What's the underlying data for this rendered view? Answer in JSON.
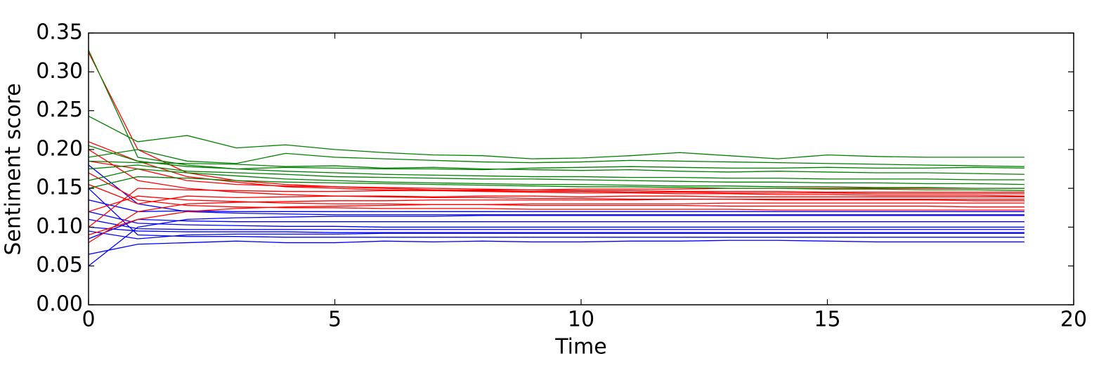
{
  "chart_data": {
    "type": "line",
    "xlabel": "Time",
    "ylabel": "Sentiment score",
    "xlim": [
      0,
      20
    ],
    "ylim": [
      0,
      0.35
    ],
    "xticks": [
      0,
      5,
      10,
      15,
      20
    ],
    "yticks": [
      {
        "value": 0,
        "label": "0.00"
      },
      0.05,
      {
        "value": 0.1,
        "label": "0.10"
      },
      0.15,
      {
        "value": 0.2,
        "label": "0.20"
      },
      0.25,
      {
        "value": 0.3,
        "label": "0.30"
      },
      0.35
    ],
    "x": [
      0,
      1,
      2,
      3,
      4,
      5,
      6,
      7,
      8,
      9,
      10,
      11,
      12,
      13,
      14,
      15,
      16,
      17,
      18,
      19
    ],
    "series": [
      {
        "color": "#0000ff",
        "values": [
          0.05,
          0.1,
          0.11,
          0.112,
          0.113,
          0.114,
          0.114,
          0.114,
          0.115,
          0.115,
          0.115,
          0.115,
          0.115,
          0.115,
          0.115,
          0.115,
          0.115,
          0.115,
          0.115,
          0.115
        ]
      },
      {
        "color": "#0000ff",
        "values": [
          0.065,
          0.078,
          0.08,
          0.082,
          0.08,
          0.08,
          0.082,
          0.081,
          0.082,
          0.081,
          0.081,
          0.082,
          0.082,
          0.083,
          0.083,
          0.082,
          0.081,
          0.081,
          0.081,
          0.081
        ]
      },
      {
        "color": "#0000ff",
        "values": [
          0.15,
          0.09,
          0.088,
          0.088,
          0.087,
          0.087,
          0.087,
          0.087,
          0.087,
          0.087,
          0.087,
          0.087,
          0.087,
          0.087,
          0.087,
          0.087,
          0.087,
          0.087,
          0.087,
          0.087
        ]
      },
      {
        "color": "#0000ff",
        "values": [
          0.18,
          0.13,
          0.12,
          0.118,
          0.117,
          0.116,
          0.116,
          0.116,
          0.116,
          0.116,
          0.116,
          0.116,
          0.116,
          0.116,
          0.116,
          0.116,
          0.116,
          0.116,
          0.116,
          0.116
        ]
      },
      {
        "color": "#0000ff",
        "values": [
          0.1,
          0.095,
          0.094,
          0.094,
          0.094,
          0.093,
          0.093,
          0.093,
          0.093,
          0.093,
          0.093,
          0.093,
          0.093,
          0.093,
          0.093,
          0.093,
          0.093,
          0.093,
          0.093,
          0.093
        ]
      },
      {
        "color": "#0000ff",
        "values": [
          0.12,
          0.105,
          0.103,
          0.102,
          0.101,
          0.101,
          0.1,
          0.1,
          0.1,
          0.1,
          0.1,
          0.1,
          0.1,
          0.1,
          0.1,
          0.1,
          0.1,
          0.1,
          0.1,
          0.1
        ]
      },
      {
        "color": "#0000ff",
        "values": [
          0.085,
          0.11,
          0.108,
          0.107,
          0.107,
          0.107,
          0.107,
          0.107,
          0.107,
          0.107,
          0.107,
          0.107,
          0.107,
          0.107,
          0.107,
          0.107,
          0.107,
          0.107,
          0.107,
          0.107
        ]
      },
      {
        "color": "#0000ff",
        "values": [
          0.135,
          0.12,
          0.121,
          0.12,
          0.12,
          0.12,
          0.12,
          0.12,
          0.12,
          0.12,
          0.12,
          0.12,
          0.12,
          0.12,
          0.12,
          0.12,
          0.12,
          0.12,
          0.12,
          0.12
        ]
      },
      {
        "color": "#0000ff",
        "values": [
          0.11,
          0.098,
          0.097,
          0.097,
          0.097,
          0.097,
          0.097,
          0.097,
          0.097,
          0.097,
          0.097,
          0.097,
          0.097,
          0.097,
          0.097,
          0.097,
          0.097,
          0.097,
          0.097,
          0.097
        ]
      },
      {
        "color": "#0000ff",
        "values": [
          0.095,
          0.085,
          0.09,
          0.091,
          0.091,
          0.091,
          0.092,
          0.092,
          0.092,
          0.092,
          0.092,
          0.092,
          0.092,
          0.092,
          0.092,
          0.092,
          0.092,
          0.092,
          0.092,
          0.092
        ]
      },
      {
        "color": "#ff0000",
        "values": [
          0.325,
          0.2,
          0.17,
          0.16,
          0.155,
          0.152,
          0.15,
          0.148,
          0.147,
          0.146,
          0.146,
          0.145,
          0.145,
          0.144,
          0.144,
          0.144,
          0.143,
          0.143,
          0.143,
          0.143
        ]
      },
      {
        "color": "#ff0000",
        "values": [
          0.21,
          0.185,
          0.165,
          0.158,
          0.152,
          0.15,
          0.148,
          0.147,
          0.146,
          0.145,
          0.144,
          0.144,
          0.143,
          0.143,
          0.142,
          0.142,
          0.141,
          0.141,
          0.141,
          0.14
        ]
      },
      {
        "color": "#ff0000",
        "values": [
          0.2,
          0.16,
          0.15,
          0.145,
          0.142,
          0.14,
          0.139,
          0.138,
          0.138,
          0.137,
          0.137,
          0.136,
          0.136,
          0.136,
          0.135,
          0.135,
          0.135,
          0.135,
          0.134,
          0.134
        ]
      },
      {
        "color": "#ff0000",
        "values": [
          0.08,
          0.12,
          0.13,
          0.132,
          0.133,
          0.134,
          0.134,
          0.135,
          0.135,
          0.135,
          0.135,
          0.135,
          0.136,
          0.136,
          0.136,
          0.136,
          0.136,
          0.136,
          0.136,
          0.136
        ]
      },
      {
        "color": "#ff0000",
        "values": [
          0.12,
          0.14,
          0.135,
          0.133,
          0.131,
          0.13,
          0.13,
          0.129,
          0.129,
          0.128,
          0.128,
          0.128,
          0.128,
          0.127,
          0.127,
          0.127,
          0.127,
          0.127,
          0.126,
          0.126
        ]
      },
      {
        "color": "#ff0000",
        "values": [
          0.17,
          0.135,
          0.128,
          0.126,
          0.125,
          0.125,
          0.124,
          0.124,
          0.124,
          0.123,
          0.123,
          0.123,
          0.123,
          0.123,
          0.122,
          0.122,
          0.122,
          0.122,
          0.122,
          0.122
        ]
      },
      {
        "color": "#ff0000",
        "values": [
          0.1,
          0.15,
          0.148,
          0.147,
          0.146,
          0.146,
          0.147,
          0.147,
          0.148,
          0.148,
          0.149,
          0.149,
          0.149,
          0.15,
          0.15,
          0.15,
          0.15,
          0.15,
          0.15,
          0.15
        ]
      },
      {
        "color": "#ff0000",
        "values": [
          0.155,
          0.13,
          0.14,
          0.138,
          0.139,
          0.14,
          0.14,
          0.139,
          0.14,
          0.14,
          0.139,
          0.14,
          0.14,
          0.139,
          0.139,
          0.139,
          0.139,
          0.139,
          0.139,
          0.139
        ]
      },
      {
        "color": "#ff0000",
        "values": [
          0.09,
          0.11,
          0.12,
          0.124,
          0.126,
          0.127,
          0.128,
          0.129,
          0.129,
          0.13,
          0.13,
          0.13,
          0.13,
          0.131,
          0.131,
          0.131,
          0.131,
          0.131,
          0.131,
          0.131
        ]
      },
      {
        "color": "#ff0000",
        "values": [
          0.185,
          0.175,
          0.16,
          0.155,
          0.153,
          0.152,
          0.151,
          0.15,
          0.149,
          0.148,
          0.147,
          0.147,
          0.146,
          0.146,
          0.146,
          0.145,
          0.145,
          0.145,
          0.145,
          0.145
        ]
      },
      {
        "color": "#008000",
        "values": [
          0.328,
          0.19,
          0.18,
          0.175,
          0.172,
          0.17,
          0.168,
          0.167,
          0.166,
          0.165,
          0.165,
          0.164,
          0.164,
          0.163,
          0.163,
          0.162,
          0.162,
          0.162,
          0.161,
          0.161
        ]
      },
      {
        "color": "#008000",
        "values": [
          0.243,
          0.21,
          0.218,
          0.202,
          0.206,
          0.2,
          0.196,
          0.193,
          0.192,
          0.188,
          0.189,
          0.192,
          0.196,
          0.192,
          0.188,
          0.193,
          0.191,
          0.19,
          0.19,
          0.19
        ]
      },
      {
        "color": "#008000",
        "values": [
          0.19,
          0.2,
          0.185,
          0.182,
          0.195,
          0.19,
          0.188,
          0.186,
          0.184,
          0.183,
          0.184,
          0.186,
          0.185,
          0.184,
          0.183,
          0.182,
          0.181,
          0.18,
          0.179,
          0.178
        ]
      },
      {
        "color": "#008000",
        "values": [
          0.185,
          0.183,
          0.182,
          0.181,
          0.178,
          0.179,
          0.176,
          0.177,
          0.175,
          0.174,
          0.173,
          0.174,
          0.172,
          0.171,
          0.172,
          0.171,
          0.17,
          0.17,
          0.169,
          0.168
        ]
      },
      {
        "color": "#008000",
        "values": [
          0.175,
          0.18,
          0.172,
          0.17,
          0.168,
          0.165,
          0.164,
          0.163,
          0.162,
          0.162,
          0.161,
          0.16,
          0.159,
          0.158,
          0.158,
          0.157,
          0.157,
          0.156,
          0.156,
          0.155
        ]
      },
      {
        "color": "#008000",
        "values": [
          0.16,
          0.175,
          0.17,
          0.166,
          0.162,
          0.16,
          0.158,
          0.157,
          0.156,
          0.155,
          0.155,
          0.154,
          0.153,
          0.153,
          0.152,
          0.152,
          0.151,
          0.151,
          0.15,
          0.15
        ]
      },
      {
        "color": "#008000",
        "values": [
          0.205,
          0.185,
          0.178,
          0.175,
          0.177,
          0.176,
          0.175,
          0.175,
          0.174,
          0.176,
          0.177,
          0.178,
          0.177,
          0.176,
          0.176,
          0.177,
          0.176,
          0.176,
          0.177,
          0.176
        ]
      },
      {
        "color": "#008000",
        "values": [
          0.15,
          0.165,
          0.163,
          0.16,
          0.158,
          0.157,
          0.156,
          0.155,
          0.154,
          0.153,
          0.152,
          0.152,
          0.151,
          0.15,
          0.15,
          0.149,
          0.149,
          0.148,
          0.148,
          0.147
        ]
      }
    ]
  }
}
